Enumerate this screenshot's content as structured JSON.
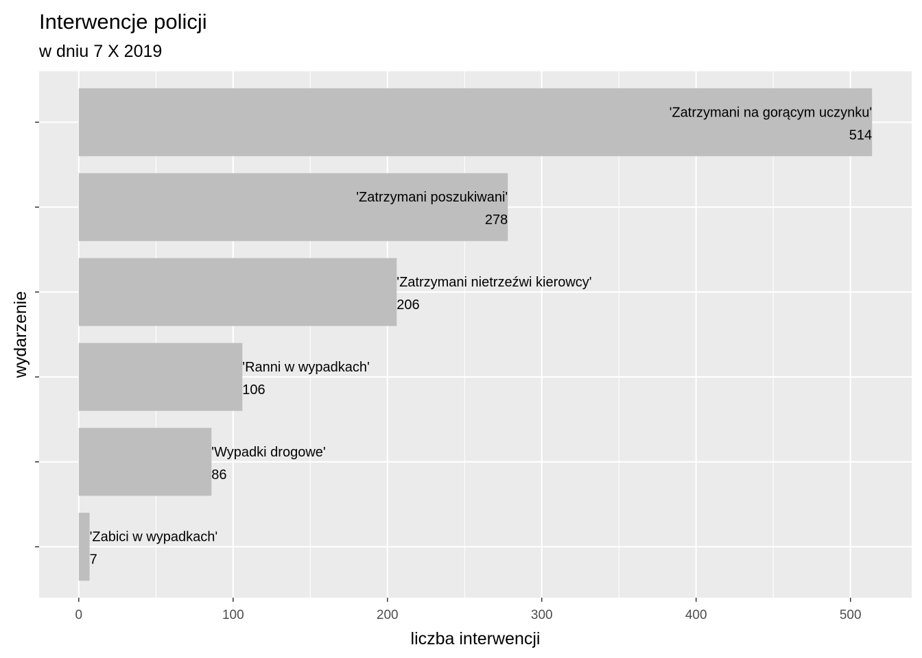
{
  "chart_data": {
    "type": "bar",
    "orientation": "horizontal",
    "title": "Interwencje policji",
    "subtitle": "w dniu 7 X 2019",
    "xlabel": "liczba interwencji",
    "ylabel": "wydarzenie",
    "xlim": [
      -25.7,
      539.7
    ],
    "x_ticks": [
      0,
      100,
      200,
      300,
      400,
      500
    ],
    "x_minor_ticks": [
      50,
      150,
      250,
      350,
      450
    ],
    "grid": true,
    "legend": "none",
    "colors": {
      "panel": "#ebebeb",
      "grid": "#ffffff",
      "bar": "#bebebe",
      "tick": "#333333"
    },
    "categories": [
      "'Zatrzymani na gorącym uczynku'",
      "'Zatrzymani poszukiwani'",
      "'Zatrzymani nietrzeźwi kierowcy'",
      "'Ranni w wypadkach'",
      "'Wypadki drogowe'",
      "'Zabici w wypadkach'"
    ],
    "values": [
      514,
      278,
      206,
      106,
      86,
      7
    ],
    "value_labels": [
      "514",
      "278",
      "206",
      "106",
      "86",
      "7"
    ]
  }
}
